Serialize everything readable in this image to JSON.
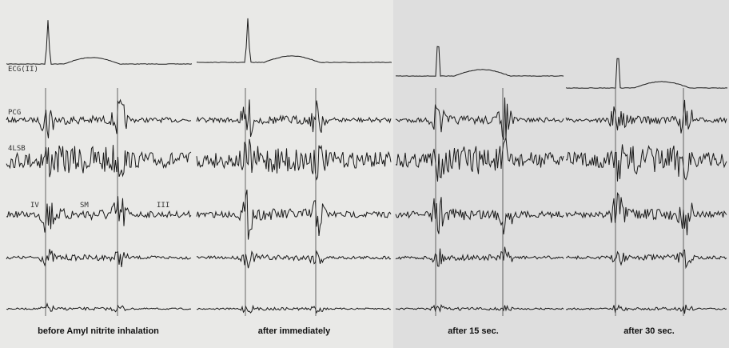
{
  "labels": {
    "ecg": "ECG(II)",
    "pcg": "PCG",
    "lsb": "4LSB",
    "iv": "IV",
    "sm": "SM",
    "iii": "III"
  },
  "captions": [
    "before Amyl nitrite inhalation",
    "after immediately",
    "after 15 sec.",
    "after 30 sec."
  ]
}
